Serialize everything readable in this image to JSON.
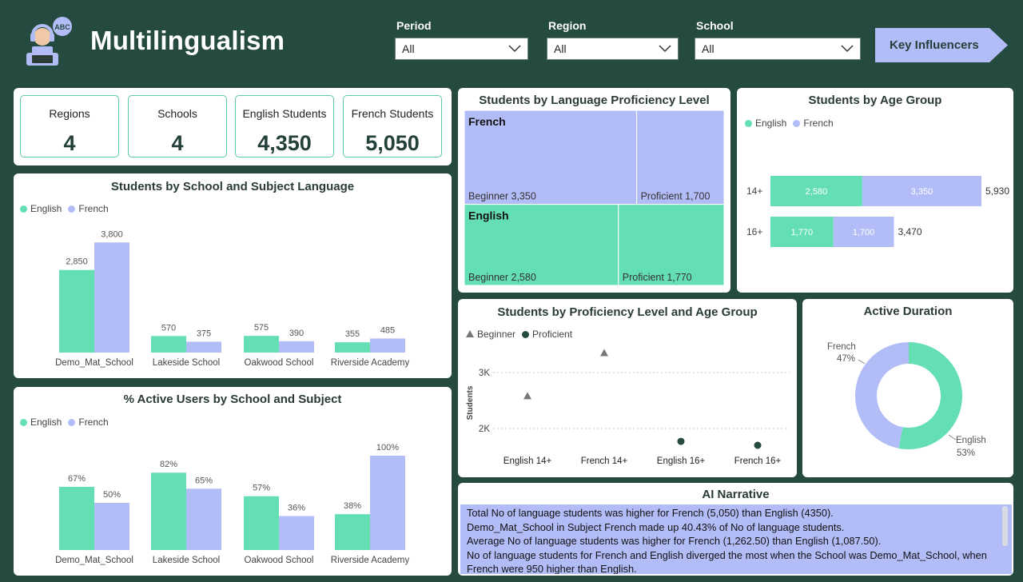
{
  "header": {
    "title": "Multilingualism",
    "logo_icon": "student-headset-icon",
    "logo_badge": "ABC",
    "filters": [
      {
        "label": "Period",
        "value": "All"
      },
      {
        "label": "Region",
        "value": "All"
      },
      {
        "label": "School",
        "value": "All"
      }
    ],
    "key_influencers_label": "Key Influencers"
  },
  "kpis": [
    {
      "label": "Regions",
      "value": "4"
    },
    {
      "label": "Schools",
      "value": "4"
    },
    {
      "label": "English Students",
      "value": "4,350"
    },
    {
      "label": "French Students",
      "value": "5,050"
    }
  ],
  "colors": {
    "english": "#64dfb4",
    "french": "#b2bdf7",
    "dark": "#254a3f"
  },
  "legend": {
    "english": "English",
    "french": "French",
    "beginner": "Beginner",
    "proficient": "Proficient"
  },
  "chart_data": [
    {
      "id": "school_subject",
      "type": "bar",
      "title": "Students by School and Subject Language",
      "categories": [
        "Demo_Mat_School",
        "Lakeside School",
        "Oakwood School",
        "Riverside Academy"
      ],
      "series": [
        {
          "name": "English",
          "values": [
            2850,
            570,
            575,
            355
          ],
          "labels": [
            "2,850",
            "570",
            "575",
            "355"
          ]
        },
        {
          "name": "French",
          "values": [
            3800,
            375,
            390,
            485
          ],
          "labels": [
            "3,800",
            "375",
            "390",
            "485"
          ]
        }
      ],
      "ylim": [
        0,
        4000
      ]
    },
    {
      "id": "active_users",
      "type": "bar",
      "title": "% Active Users by School and Subject",
      "categories": [
        "Demo_Mat_School",
        "Lakeside School",
        "Oakwood School",
        "Riverside Academy"
      ],
      "series": [
        {
          "name": "English",
          "values": [
            67,
            82,
            57,
            38
          ],
          "labels": [
            "67%",
            "82%",
            "57%",
            "38%"
          ]
        },
        {
          "name": "French",
          "values": [
            50,
            65,
            36,
            100
          ],
          "labels": [
            "50%",
            "65%",
            "36%",
            "100%"
          ]
        }
      ],
      "ylim": [
        0,
        100
      ]
    },
    {
      "id": "proficiency_treemap",
      "type": "treemap",
      "title": "Students by Language Proficiency Level",
      "groups": [
        {
          "name": "French",
          "total": 5050,
          "cells": [
            {
              "label": "Beginner 3,350",
              "value": 3350
            },
            {
              "label": "Proficient 1,700",
              "value": 1700
            }
          ]
        },
        {
          "name": "English",
          "total": 4350,
          "cells": [
            {
              "label": "Beginner 2,580",
              "value": 2580
            },
            {
              "label": "Proficient 1,770",
              "value": 1770
            }
          ]
        }
      ]
    },
    {
      "id": "age_group",
      "type": "bar",
      "orientation": "horizontal",
      "stacked": true,
      "title": "Students by Age Group",
      "categories": [
        "14+",
        "16+"
      ],
      "series": [
        {
          "name": "English",
          "values": [
            2580,
            1770
          ],
          "labels": [
            "2,580",
            "1,770"
          ]
        },
        {
          "name": "French",
          "values": [
            3350,
            1700
          ],
          "labels": [
            "3,350",
            "1,700"
          ]
        }
      ],
      "totals": [
        "5,930",
        "3,470"
      ]
    },
    {
      "id": "prof_age_scatter",
      "type": "scatter",
      "title": "Students by Proficiency Level and Age Group",
      "ylabel": "Students",
      "yticks": [
        {
          "value": 2000,
          "label": "2K"
        },
        {
          "value": 3000,
          "label": "3K"
        }
      ],
      "ylim": [
        1600,
        3600
      ],
      "categories": [
        "English 14+",
        "French 14+",
        "English 16+",
        "French 16+"
      ],
      "series": [
        {
          "name": "Beginner",
          "marker": "triangle",
          "values": [
            2580,
            3350,
            null,
            null
          ]
        },
        {
          "name": "Proficient",
          "marker": "circle",
          "values": [
            null,
            null,
            1770,
            1700
          ]
        }
      ]
    },
    {
      "id": "active_duration",
      "type": "pie",
      "donut": true,
      "title": "Active Duration",
      "slices": [
        {
          "name": "English",
          "value": 53,
          "label": "53%"
        },
        {
          "name": "French",
          "value": 47,
          "label": "47%"
        }
      ]
    }
  ],
  "narrative": {
    "title": "AI Narrative",
    "lines": [
      "Total No of language students was higher for French (5,050) than English (4350).",
      "Demo_Mat_School in Subject French made up 40.43% of No of language students.",
      "Average No of language students was higher for French (1,262.50) than English (1,087.50).",
      "No of language students for French and English diverged the most when the School was Demo_Mat_School, when French were 950 higher than English."
    ]
  }
}
